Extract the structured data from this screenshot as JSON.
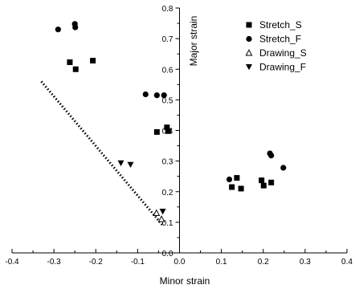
{
  "chart_data": {
    "type": "scatter",
    "xlabel": "Minor strain",
    "ylabel": "Major strain",
    "xlim": [
      -0.4,
      0.4
    ],
    "ylim": [
      0,
      0.8
    ],
    "x_ticks": [
      "-0.4",
      "-0.3",
      "-0.2",
      "-0.1",
      "0.0",
      "0.1",
      "0.2",
      "0.3",
      "0.4"
    ],
    "y_ticks": [
      "0.0",
      "0.1",
      "0.2",
      "0.3",
      "0.4",
      "0.5",
      "0.6",
      "0.7",
      "0.8"
    ],
    "grid": false,
    "legend_position": "top-right",
    "series": [
      {
        "name": "Stretch_S",
        "marker": "square",
        "points": [
          [
            -0.262,
            0.623
          ],
          [
            -0.248,
            0.6
          ],
          [
            -0.207,
            0.628
          ],
          [
            -0.054,
            0.395
          ],
          [
            -0.03,
            0.41
          ],
          [
            -0.027,
            0.398
          ],
          [
            0.125,
            0.215
          ],
          [
            0.137,
            0.245
          ],
          [
            0.147,
            0.21
          ],
          [
            0.196,
            0.237
          ],
          [
            0.201,
            0.22
          ],
          [
            0.219,
            0.23
          ]
        ]
      },
      {
        "name": "Stretch_F",
        "marker": "circle",
        "points": [
          [
            -0.29,
            0.73
          ],
          [
            -0.25,
            0.748
          ],
          [
            -0.249,
            0.737
          ],
          [
            -0.081,
            0.518
          ],
          [
            -0.054,
            0.515
          ],
          [
            -0.037,
            0.515
          ],
          [
            0.119,
            0.24
          ],
          [
            0.216,
            0.325
          ],
          [
            0.219,
            0.318
          ],
          [
            0.248,
            0.278
          ]
        ]
      },
      {
        "name": "Drawing_S",
        "marker": "triangle-up-open",
        "points": [
          [
            -0.055,
            0.13
          ],
          [
            -0.043,
            0.11
          ]
        ]
      },
      {
        "name": "Drawing_F",
        "marker": "triangle-down",
        "points": [
          [
            -0.14,
            0.293
          ],
          [
            -0.117,
            0.288
          ],
          [
            -0.04,
            0.135
          ]
        ]
      }
    ],
    "annotations": [
      {
        "type": "dotted-line",
        "from": [
          -0.33,
          0.56
        ],
        "to": [
          -0.04,
          0.09
        ]
      }
    ]
  }
}
